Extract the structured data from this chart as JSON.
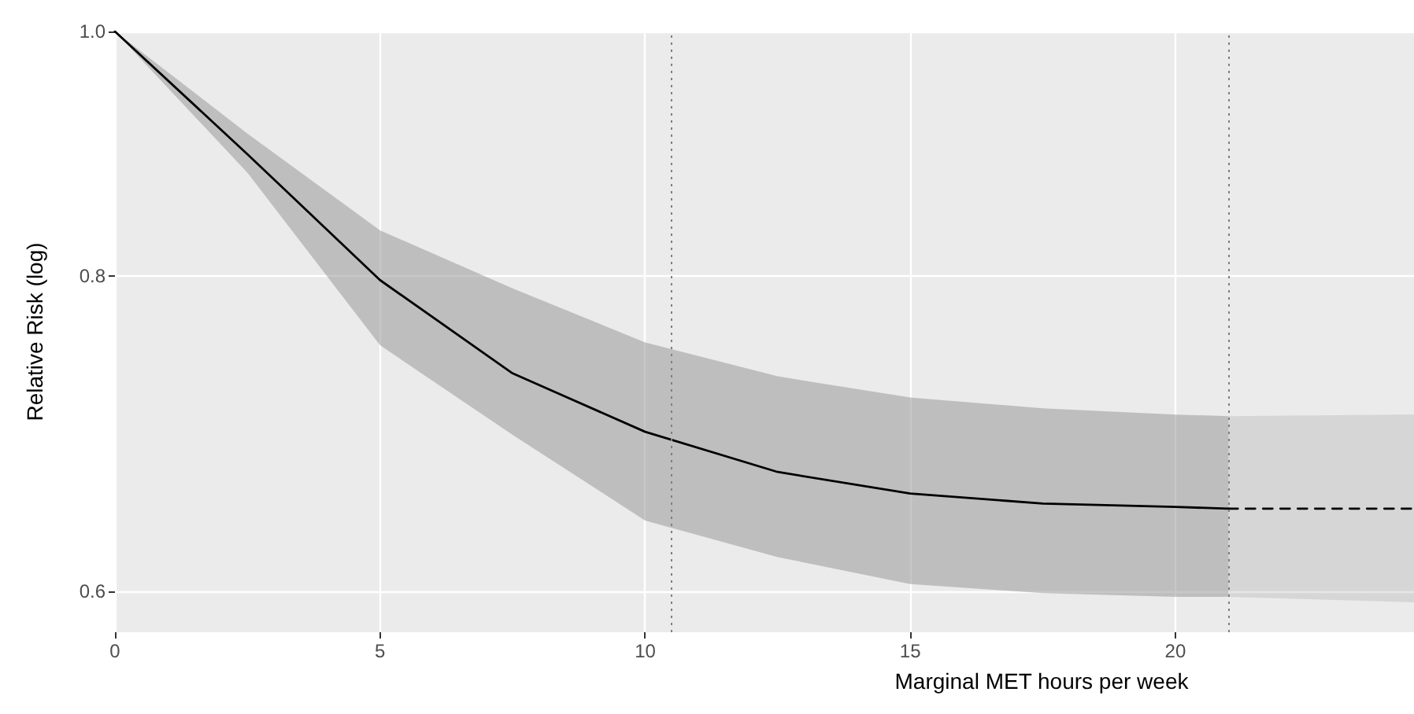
{
  "chart_data": {
    "type": "line",
    "xlabel": "Marginal MET hours per week",
    "ylabel": "Relative Risk (log)",
    "log": "y",
    "grid": true,
    "marker": "none",
    "xlim": [
      0,
      24.5
    ],
    "xticks": [
      0,
      5,
      10,
      15,
      20
    ],
    "ylim": [
      0.578,
      1.0
    ],
    "yticks": [
      {
        "value": 0.6,
        "label": "0.6"
      },
      {
        "value": 0.8,
        "label": "0.8"
      },
      {
        "value": 1.0,
        "label": "1.0"
      }
    ],
    "series": [
      {
        "color": "#000000",
        "line_style": "solid",
        "x": [
          0,
          2.5,
          5,
          7.5,
          10,
          12.5,
          15,
          17.5,
          20,
          21
        ],
        "values": [
          1.0,
          0.894,
          0.797,
          0.732,
          0.694,
          0.669,
          0.656,
          0.65,
          0.648,
          0.647
        ],
        "lower": [
          1.0,
          0.879,
          0.751,
          0.692,
          0.64,
          0.619,
          0.604,
          0.599,
          0.597,
          0.597
        ],
        "upper": [
          1.0,
          0.911,
          0.834,
          0.791,
          0.753,
          0.73,
          0.716,
          0.709,
          0.705,
          0.704
        ]
      },
      {
        "color": "#000000",
        "line_style": "dashed",
        "x": [
          21,
          24.5
        ],
        "values": [
          0.647,
          0.647
        ],
        "lower": [
          0.597,
          0.594
        ],
        "upper": [
          0.704,
          0.705
        ]
      }
    ],
    "ref_lines": [
      {
        "axis": "x",
        "value": 10.5,
        "line_style": "dotted",
        "color": "#7f7f7f"
      },
      {
        "axis": "x",
        "value": 21,
        "line_style": "dotted",
        "color": "#7f7f7f"
      }
    ]
  }
}
